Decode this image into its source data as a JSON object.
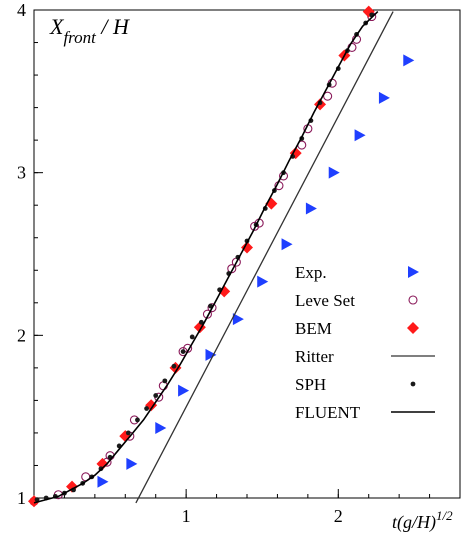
{
  "chart_data": {
    "type": "scatter",
    "title": "",
    "ylabel_main": "X",
    "ylabel_sub": "front",
    "ylabel_tail": " / H",
    "xlabel_main": "t(g/H)",
    "xlabel_sup": "1/2",
    "xlim": [
      0,
      2.8
    ],
    "ylim": [
      1,
      4
    ],
    "x_ticks": [
      {
        "value": 1,
        "label": "1"
      },
      {
        "value": 2,
        "label": "2"
      }
    ],
    "y_ticks": [
      {
        "value": 1,
        "label": "1"
      },
      {
        "value": 2,
        "label": "2"
      },
      {
        "value": 3,
        "label": "3"
      },
      {
        "value": 4,
        "label": "4"
      }
    ],
    "grid": false,
    "legend_position": "right",
    "series": [
      {
        "name": "Exp.",
        "marker": "triangle-right",
        "color": "#1f3fff",
        "points": [
          [
            0.45,
            1.1
          ],
          [
            0.64,
            1.21
          ],
          [
            0.83,
            1.43
          ],
          [
            0.98,
            1.66
          ],
          [
            1.16,
            1.88
          ],
          [
            1.34,
            2.1
          ],
          [
            1.5,
            2.33
          ],
          [
            1.66,
            2.56
          ],
          [
            1.82,
            2.78
          ],
          [
            1.97,
            3.0
          ],
          [
            2.14,
            3.23
          ],
          [
            2.3,
            3.46
          ],
          [
            2.46,
            3.69
          ]
        ]
      },
      {
        "name": "Leve Set",
        "marker": "open-circle",
        "color": "#8a1a5a",
        "points": [
          [
            0.0,
            0.98
          ],
          [
            0.16,
            1.02
          ],
          [
            0.34,
            1.13
          ],
          [
            0.48,
            1.22
          ],
          [
            0.5,
            1.26
          ],
          [
            0.63,
            1.38
          ],
          [
            0.66,
            1.48
          ],
          [
            0.82,
            1.62
          ],
          [
            0.85,
            1.69
          ],
          [
            0.98,
            1.9
          ],
          [
            1.01,
            1.92
          ],
          [
            1.14,
            2.13
          ],
          [
            1.17,
            2.17
          ],
          [
            1.3,
            2.41
          ],
          [
            1.33,
            2.45
          ],
          [
            1.45,
            2.67
          ],
          [
            1.48,
            2.69
          ],
          [
            1.61,
            2.92
          ],
          [
            1.64,
            2.98
          ],
          [
            1.76,
            3.17
          ],
          [
            1.8,
            3.27
          ],
          [
            1.93,
            3.47
          ],
          [
            1.96,
            3.55
          ],
          [
            2.09,
            3.77
          ],
          [
            2.12,
            3.82
          ],
          [
            2.22,
            3.96
          ]
        ]
      },
      {
        "name": "BEM",
        "marker": "diamond",
        "color": "#ff1a1a",
        "points": [
          [
            0.0,
            0.98
          ],
          [
            0.25,
            1.07
          ],
          [
            0.45,
            1.21
          ],
          [
            0.6,
            1.38
          ],
          [
            0.77,
            1.57
          ],
          [
            0.93,
            1.8
          ],
          [
            1.09,
            2.05
          ],
          [
            1.25,
            2.27
          ],
          [
            1.4,
            2.54
          ],
          [
            1.56,
            2.81
          ],
          [
            1.72,
            3.12
          ],
          [
            1.88,
            3.42
          ],
          [
            2.04,
            3.72
          ],
          [
            2.2,
            3.99
          ]
        ]
      },
      {
        "name": "Ritter",
        "marker": "line",
        "color": "#333333",
        "points": [
          [
            0.67,
            0.97
          ],
          [
            2.36,
            3.99
          ]
        ]
      },
      {
        "name": "SPH",
        "marker": "dot",
        "color": "#1a1a1a",
        "points": [
          [
            0.02,
            0.99
          ],
          [
            0.08,
            1.0
          ],
          [
            0.14,
            1.01
          ],
          [
            0.2,
            1.03
          ],
          [
            0.26,
            1.05
          ],
          [
            0.32,
            1.09
          ],
          [
            0.38,
            1.13
          ],
          [
            0.44,
            1.18
          ],
          [
            0.5,
            1.25
          ],
          [
            0.56,
            1.32
          ],
          [
            0.62,
            1.4
          ],
          [
            0.68,
            1.48
          ],
          [
            0.74,
            1.55
          ],
          [
            0.8,
            1.63
          ],
          [
            0.86,
            1.72
          ],
          [
            0.92,
            1.81
          ],
          [
            0.98,
            1.9
          ],
          [
            1.04,
            1.99
          ],
          [
            1.1,
            2.08
          ],
          [
            1.16,
            2.18
          ],
          [
            1.22,
            2.28
          ],
          [
            1.28,
            2.38
          ],
          [
            1.34,
            2.48
          ],
          [
            1.4,
            2.58
          ],
          [
            1.46,
            2.68
          ],
          [
            1.52,
            2.78
          ],
          [
            1.58,
            2.89
          ],
          [
            1.64,
            3.0
          ],
          [
            1.7,
            3.1
          ],
          [
            1.76,
            3.21
          ],
          [
            1.82,
            3.32
          ],
          [
            1.88,
            3.43
          ],
          [
            1.94,
            3.54
          ],
          [
            2.0,
            3.64
          ],
          [
            2.06,
            3.75
          ],
          [
            2.12,
            3.85
          ],
          [
            2.18,
            3.92
          ],
          [
            2.22,
            3.97
          ]
        ]
      },
      {
        "name": "FLUENT",
        "marker": "line",
        "color": "#000000",
        "points": [
          [
            0.0,
            0.97
          ],
          [
            0.08,
            0.99
          ],
          [
            0.16,
            1.01
          ],
          [
            0.24,
            1.05
          ],
          [
            0.32,
            1.09
          ],
          [
            0.4,
            1.14
          ],
          [
            0.48,
            1.21
          ],
          [
            0.56,
            1.3
          ],
          [
            0.64,
            1.39
          ],
          [
            0.72,
            1.48
          ],
          [
            0.8,
            1.59
          ],
          [
            0.88,
            1.7
          ],
          [
            0.96,
            1.82
          ],
          [
            1.04,
            1.95
          ],
          [
            1.12,
            2.08
          ],
          [
            1.2,
            2.22
          ],
          [
            1.28,
            2.36
          ],
          [
            1.36,
            2.5
          ],
          [
            1.44,
            2.64
          ],
          [
            1.52,
            2.79
          ],
          [
            1.6,
            2.93
          ],
          [
            1.68,
            3.08
          ],
          [
            1.76,
            3.22
          ],
          [
            1.84,
            3.37
          ],
          [
            1.92,
            3.51
          ],
          [
            2.0,
            3.65
          ],
          [
            2.08,
            3.79
          ],
          [
            2.16,
            3.9
          ],
          [
            2.26,
            3.99
          ]
        ]
      }
    ]
  }
}
